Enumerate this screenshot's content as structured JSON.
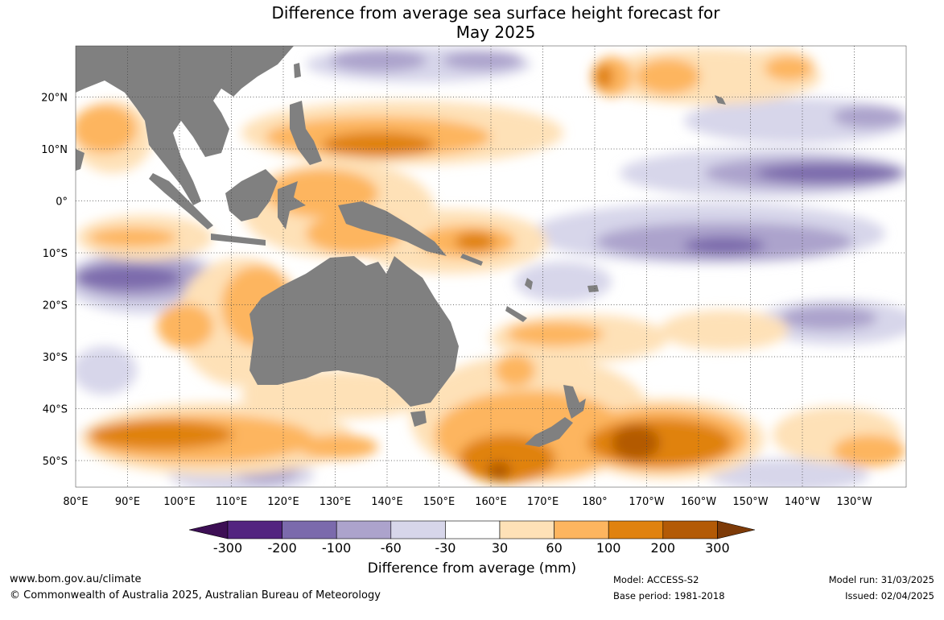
{
  "title": {
    "line1": "Difference from average sea surface height forecast for",
    "line2": "May 2025"
  },
  "map": {
    "lon_labels": [
      "80°E",
      "90°E",
      "100°E",
      "110°E",
      "120°E",
      "130°E",
      "140°E",
      "150°E",
      "160°E",
      "170°E",
      "180°",
      "170°W",
      "160°W",
      "150°W",
      "140°W",
      "130°W"
    ],
    "lat_labels": [
      "20°N",
      "10°N",
      "0°",
      "10°S",
      "20°S",
      "30°S",
      "40°S",
      "50°S"
    ],
    "land_color": "#808080"
  },
  "legend": {
    "title": "Difference from average (mm)",
    "tick_labels": [
      "-300",
      "-200",
      "-100",
      "-60",
      "-30",
      "30",
      "60",
      "100",
      "200",
      "300"
    ],
    "colors": [
      "#3d0f55",
      "#532480",
      "#7b6aac",
      "#aca3cc",
      "#d7d6ea",
      "#ffffff",
      "#fee1b7",
      "#fdb55f",
      "#e0820f",
      "#b35a06",
      "#7d3a08"
    ]
  },
  "footer": {
    "url": "www.bom.gov.au/climate",
    "copyright": "© Commonwealth of Australia 2025, Australian Bureau of Meteorology",
    "model": "Model: ACCESS-S2",
    "base_period": "Base period: 1981-2018",
    "model_run": "Model run: 31/03/2025",
    "issued": "Issued: 02/04/2025"
  }
}
